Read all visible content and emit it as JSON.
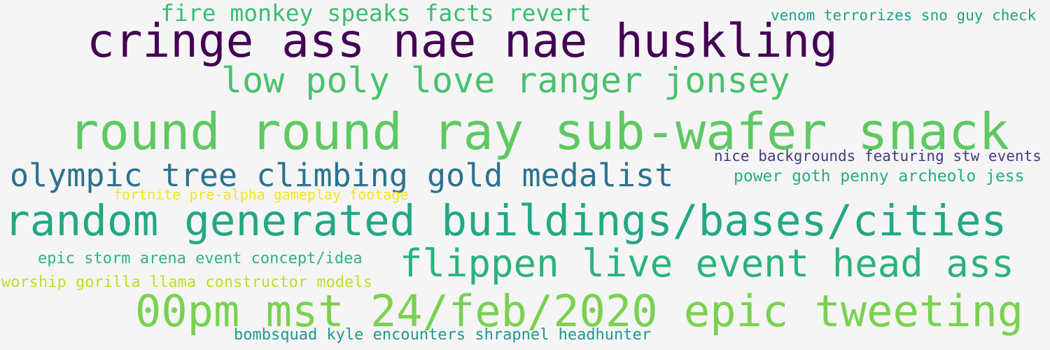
{
  "words": [
    {
      "text": "fire monkey speaks facts revert",
      "color": "#3dbc74"
    },
    {
      "text": "venom terrorizes sno guy check",
      "color": "#1fa187"
    },
    {
      "text": "cringe ass nae nae huskling",
      "color": "#440154"
    },
    {
      "text": "low poly love ranger jonsey",
      "color": "#4ac16d"
    },
    {
      "text": "round round ray sub-wafer snack",
      "color": "#5ec962"
    },
    {
      "text": "nice backgrounds featuring stw events",
      "color": "#443983"
    },
    {
      "text": "olympic tree climbing gold medalist",
      "color": "#2c728e"
    },
    {
      "text": "power goth penny archeolo jess",
      "color": "#25ab82"
    },
    {
      "text": "fortnite pre-alpha gameplay footage",
      "color": "#f2e51d"
    },
    {
      "text": "random generated buildings/bases/cities",
      "color": "#22a884"
    },
    {
      "text": "epic storm arena event concept/idea",
      "color": "#2fb47c"
    },
    {
      "text": "flippen live event head ass",
      "color": "#2db27d"
    },
    {
      "text": "worship gorilla llama constructor models",
      "color": "#bddf26"
    },
    {
      "text": "00pm mst 24/feb/2020 epic tweeting",
      "color": "#7ad151"
    },
    {
      "text": "bombsquad kyle encounters shrapnel headhunter",
      "color": "#1f988b"
    }
  ]
}
